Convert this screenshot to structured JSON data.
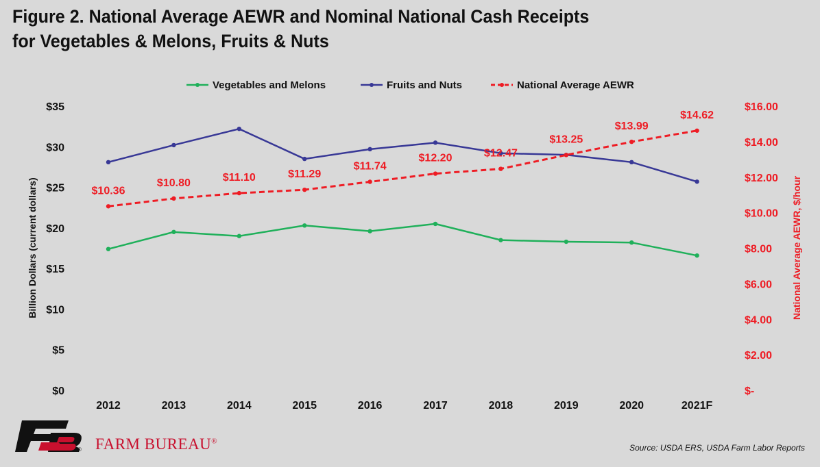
{
  "header": {
    "title_line1": "Figure 2. National Average AEWR and Nominal National Cash Receipts",
    "title_line2": "for Vegetables & Melons, Fruits & Nuts"
  },
  "footer": {
    "brand": "FARM BUREAU",
    "registered_mark": "®",
    "source": "Source: USDA ERS, USDA Farm Labor Reports"
  },
  "colors": {
    "vegetables": "#1fb05a",
    "fruits": "#383896",
    "aewr": "#ee1c24",
    "logo_black": "#111111",
    "logo_red": "#c8102e"
  },
  "chart_data": {
    "type": "line",
    "x": [
      "2012",
      "2013",
      "2014",
      "2015",
      "2016",
      "2017",
      "2018",
      "2019",
      "2020",
      "2021F"
    ],
    "ylabel_left": "Billion Dollars (current dollars)",
    "ylabel_right": "National Average AEWR, $/hour",
    "ylim_left": [
      0,
      35
    ],
    "ylim_right": [
      0,
      16
    ],
    "left_ticks": [
      "$0",
      "$5",
      "$10",
      "$15",
      "$20",
      "$25",
      "$30",
      "$35"
    ],
    "right_ticks": [
      "$-",
      "$2.00",
      "$4.00",
      "$6.00",
      "$8.00",
      "$10.00",
      "$12.00",
      "$14.00",
      "$16.00"
    ],
    "grid": false,
    "legend_position": "top",
    "series": [
      {
        "name": "Vegetables and Melons",
        "axis": "left",
        "style": "solid",
        "color": "#1fb05a",
        "values": [
          17.4,
          19.5,
          19.0,
          20.3,
          19.6,
          20.5,
          18.5,
          18.3,
          18.2,
          16.6
        ]
      },
      {
        "name": "Fruits and Nuts",
        "axis": "left",
        "style": "solid",
        "color": "#383896",
        "values": [
          28.1,
          30.2,
          32.2,
          28.5,
          29.7,
          30.5,
          29.2,
          29.0,
          28.1,
          25.7
        ]
      },
      {
        "name": "National Average AEWR",
        "axis": "right",
        "style": "dashed",
        "color": "#ee1c24",
        "values": [
          10.36,
          10.8,
          11.1,
          11.29,
          11.74,
          12.2,
          12.47,
          13.25,
          13.99,
          14.62
        ],
        "labels": [
          "$10.36",
          "$10.80",
          "$11.10",
          "$11.29",
          "$11.74",
          "$12.20",
          "$12.47",
          "$13.25",
          "$13.99",
          "$14.62"
        ]
      }
    ]
  }
}
